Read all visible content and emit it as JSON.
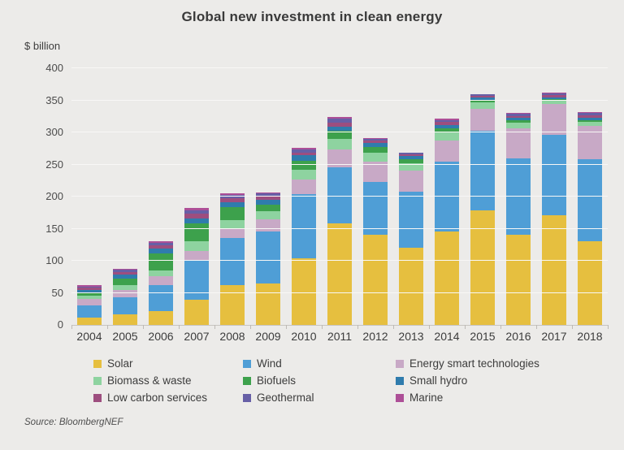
{
  "chart": {
    "title": "Global new investment in clean energy",
    "y_unit": "$ billion",
    "source": "Source: BloombergNEF"
  },
  "colors": {
    "background": "#ecebe9",
    "gridline": "#f8f7f6",
    "axis_line": "#c7c4c0",
    "title_text": "#3a3a3a",
    "axis_text": "#4c4c4c"
  },
  "chart_data": {
    "type": "bar",
    "stacked": true,
    "title": "Global new investment in clean energy",
    "xlabel": "",
    "ylabel": "$ billion",
    "ylim": [
      0,
      400
    ],
    "ytick_step": 50,
    "grid": true,
    "legend_position": "bottom",
    "categories": [
      "2004",
      "2005",
      "2006",
      "2007",
      "2008",
      "2009",
      "2010",
      "2011",
      "2012",
      "2013",
      "2014",
      "2015",
      "2016",
      "2017",
      "2018"
    ],
    "series": [
      {
        "name": "Solar",
        "color": "#e6bf3f",
        "dotted": false,
        "values": [
          12,
          16,
          22,
          39,
          62,
          64,
          104,
          158,
          140,
          120,
          145,
          179,
          140,
          171,
          131
        ]
      },
      {
        "name": "Wind",
        "color": "#4f9ed6",
        "dotted": false,
        "values": [
          19,
          27,
          40,
          61,
          74,
          81,
          100,
          88,
          83,
          87,
          110,
          124,
          119,
          125,
          127
        ]
      },
      {
        "name": "Energy smart technologies",
        "color": "#c8a9c6",
        "dotted": true,
        "values": [
          9,
          12,
          14,
          15,
          14,
          20,
          23,
          27,
          32,
          34,
          33,
          34,
          47,
          48,
          52
        ]
      },
      {
        "name": "Biomass & waste",
        "color": "#8ed3a0",
        "dotted": false,
        "values": [
          6,
          7,
          9,
          16,
          13,
          12,
          15,
          17,
          13,
          11,
          12,
          10,
          9,
          5,
          6
        ]
      },
      {
        "name": "Biofuels",
        "color": "#3da14c",
        "dotted": false,
        "values": [
          5,
          10,
          26,
          27,
          20,
          11,
          14,
          12,
          9,
          6,
          6,
          4,
          4,
          3,
          3
        ]
      },
      {
        "name": "Small hydro",
        "color": "#2f7cad",
        "dotted": false,
        "values": [
          4,
          6,
          8,
          8,
          8,
          7,
          8,
          7,
          6,
          5,
          6,
          4,
          4,
          3,
          4
        ]
      },
      {
        "name": "Low carbon services",
        "color": "#9d4e7f",
        "dotted": false,
        "values": [
          3,
          4,
          5,
          7,
          6,
          5,
          5,
          6,
          4,
          3,
          4,
          2,
          3,
          3,
          4
        ]
      },
      {
        "name": "Geothermal",
        "color": "#675fa6",
        "dotted": false,
        "values": [
          2,
          4,
          4,
          6,
          6,
          5,
          5,
          6,
          3,
          2,
          3,
          2,
          3,
          3,
          3
        ]
      },
      {
        "name": "Marine",
        "color": "#ad4f97",
        "dotted": false,
        "values": [
          2,
          2,
          2,
          3,
          2,
          2,
          2,
          3,
          1,
          1,
          2,
          1,
          1,
          1,
          2
        ]
      }
    ],
    "totals": [
      62,
      88,
      130,
      182,
      205,
      207,
      276,
      324,
      291,
      269,
      321,
      360,
      330,
      362,
      332
    ]
  }
}
